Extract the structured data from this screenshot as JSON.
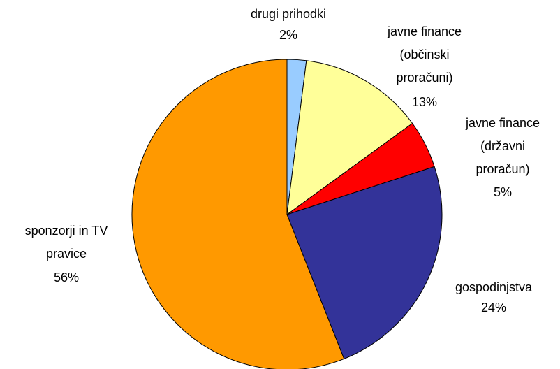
{
  "chart_data": {
    "type": "pie",
    "categories": [
      "drugi prihodki",
      "javne finance (občinski proračuni)",
      "javne finance (državni proračun)",
      "gospodinjstva",
      "sponzorji in TV pravice"
    ],
    "values": [
      2,
      13,
      5,
      24,
      56
    ],
    "value_labels": [
      "2%",
      "13%",
      "5%",
      "24%",
      "56%"
    ],
    "colors": [
      "#99ccff",
      "#ffff99",
      "#ff0000",
      "#333399",
      "#ff9900"
    ]
  }
}
